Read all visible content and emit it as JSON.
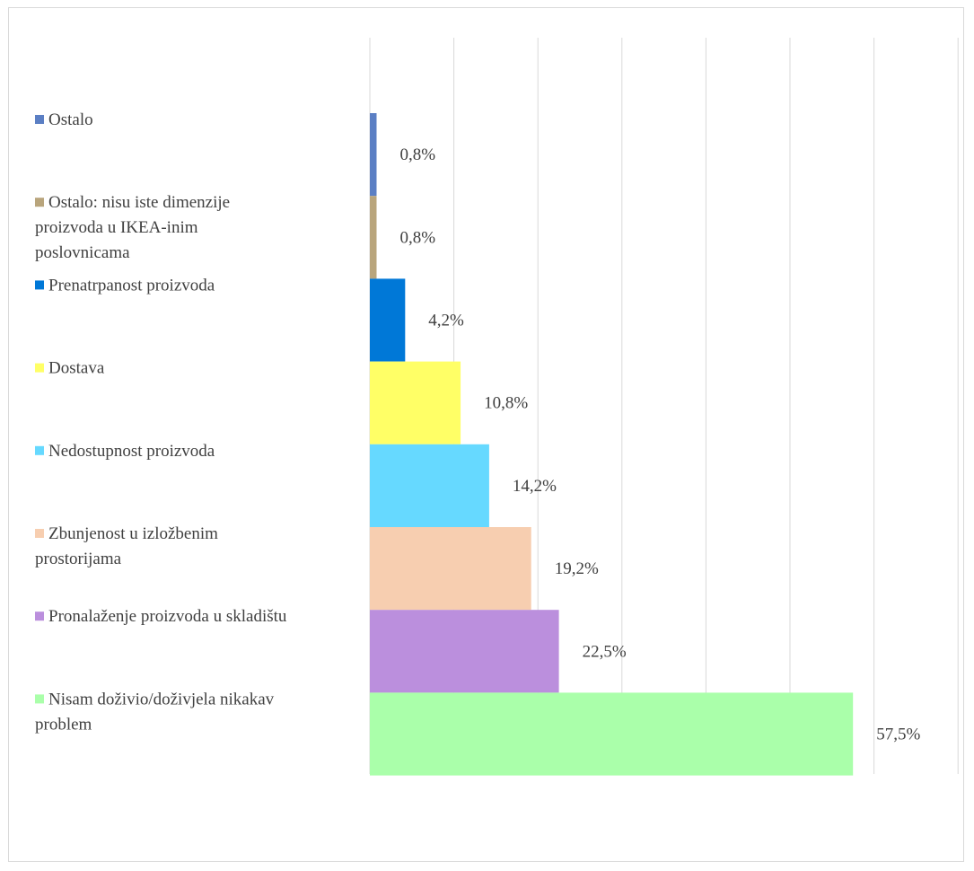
{
  "chart_data": {
    "type": "bar",
    "orientation": "horizontal",
    "xlim": [
      0,
      70
    ],
    "grid": true,
    "legend_position": "left",
    "series": [
      {
        "name": "Ostalo",
        "value": 0.8,
        "label": "0,8%",
        "color": "#5b7fc4",
        "legend_lines": [
          "Ostalo"
        ]
      },
      {
        "name": "Ostalo: nisu iste dimenzije proizvoda u IKEA-inim poslovnicama",
        "value": 0.8,
        "label": "0,8%",
        "color": "#b9a57c",
        "legend_lines": [
          "Ostalo: nisu iste dimenzije",
          "proizvoda u IKEA-inim",
          "poslovnicama"
        ]
      },
      {
        "name": "Prenatrpanost proizvoda",
        "value": 4.2,
        "label": "4,2%",
        "color": "#0078d7",
        "legend_lines": [
          "Prenatrpanost proizvoda"
        ]
      },
      {
        "name": "Dostava",
        "value": 10.8,
        "label": "10,8%",
        "color": "#ffff66",
        "legend_lines": [
          "Dostava"
        ]
      },
      {
        "name": "Nedostupnost proizvoda",
        "value": 14.2,
        "label": "14,2%",
        "color": "#66d9ff",
        "legend_lines": [
          "Nedostupnost proizvoda"
        ]
      },
      {
        "name": "Zbunjenost u izložbenim prostorijama",
        "value": 19.2,
        "label": "19,2%",
        "color": "#f7ceb0",
        "legend_lines": [
          "Zbunjenost u izložbenim",
          "prostorijama"
        ]
      },
      {
        "name": "Pronalaženje proizvoda u skladištu",
        "value": 22.5,
        "label": "22,5%",
        "color": "#bb8fdd",
        "legend_lines": [
          "Pronalaženje proizvoda u skladištu"
        ]
      },
      {
        "name": "Nisam doživio/doživjela nikakav problem",
        "value": 57.5,
        "label": "57,5%",
        "color": "#aaffaa",
        "legend_lines": [
          "Nisam doživio/doživjela nikakav",
          "problem"
        ]
      }
    ]
  }
}
